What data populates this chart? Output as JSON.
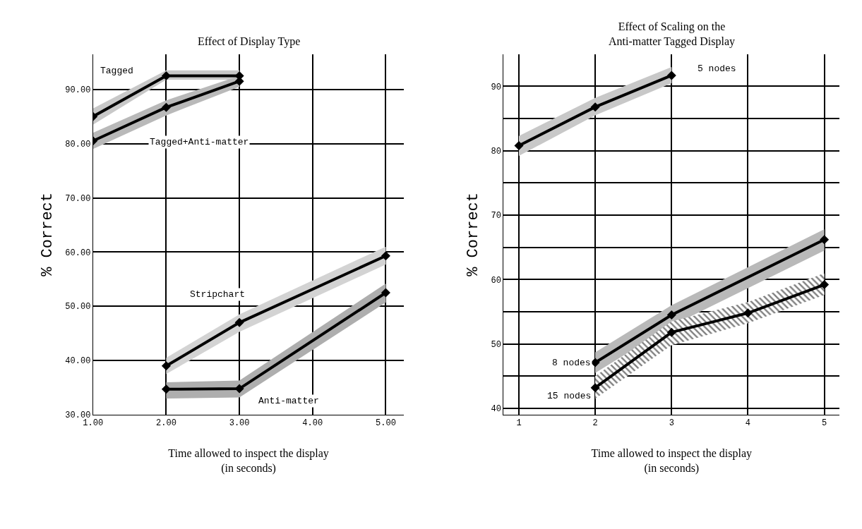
{
  "chart_data": [
    {
      "type": "line",
      "title": "Effect of Display Type",
      "xlabel": "Time allowed to inspect the display\n(in seconds)",
      "ylabel": "% Correct",
      "series": [
        {
          "name": "Tagged",
          "color": "#000000",
          "x": [
            1,
            2,
            3
          ],
          "values": [
            85,
            92.5,
            92.5
          ],
          "lower": [
            83.5,
            91.8,
            91.8
          ],
          "upper": [
            86.5,
            93.5,
            93.5
          ]
        },
        {
          "name": "Tagged+Anti-matter",
          "color": "#000000",
          "x": [
            1,
            2,
            3
          ],
          "values": [
            80.5,
            86.7,
            91.5
          ],
          "lower": [
            79,
            85.2,
            90.5
          ],
          "upper": [
            82,
            88,
            92.5
          ]
        },
        {
          "name": "Stripchart",
          "color": "#000000",
          "x": [
            2,
            3,
            5
          ],
          "values": [
            39,
            47,
            59.3
          ],
          "lower": [
            37.5,
            45.3,
            57.7
          ],
          "upper": [
            40.5,
            48.5,
            61
          ]
        },
        {
          "name": "Anti-matter",
          "color": "#000000",
          "x": [
            2,
            3,
            5
          ],
          "values": [
            34.7,
            34.8,
            52.5
          ],
          "lower": [
            33,
            33.2,
            50.7
          ],
          "upper": [
            36,
            36.3,
            54.2
          ]
        }
      ],
      "xlim": [
        1,
        5.25
      ],
      "ylim": [
        30,
        96.5
      ],
      "xticks": [
        {
          "value": 1,
          "label": "1.00"
        },
        {
          "value": 2,
          "label": "2.00"
        },
        {
          "value": 3,
          "label": "3.00"
        },
        {
          "value": 4,
          "label": "4.00"
        },
        {
          "value": 5,
          "label": "5.00"
        }
      ],
      "yticks": [
        {
          "value": 30,
          "label": "30.00"
        },
        {
          "value": 40,
          "label": "40.00"
        },
        {
          "value": 50,
          "label": "50.00"
        },
        {
          "value": 60,
          "label": "60.00"
        },
        {
          "value": 70,
          "label": "70.00"
        },
        {
          "value": 80,
          "label": "80.00"
        },
        {
          "value": 90,
          "label": "90.00"
        }
      ],
      "grid": true,
      "legend": false,
      "marker": "diamond",
      "line_style": "solid"
    },
    {
      "type": "line",
      "title": "Effect of Scaling on the\nAnti-matter Tagged Display",
      "xlabel": "Time allowed to inspect the display\n(in seconds)",
      "ylabel": "% Correct",
      "series": [
        {
          "name": "5 nodes",
          "color": "#000000",
          "x": [
            1,
            2,
            3
          ],
          "values": [
            80.8,
            86.8,
            91.7
          ],
          "lower": [
            79.2,
            85.5,
            90.5
          ],
          "upper": [
            82.3,
            88.2,
            93
          ]
        },
        {
          "name": "8 nodes",
          "color": "#000000",
          "x": [
            2,
            3,
            5
          ],
          "values": [
            47.1,
            54.5,
            66.2
          ],
          "lower": [
            45.5,
            52.8,
            64.5
          ],
          "upper": [
            48.7,
            56,
            67.8
          ]
        },
        {
          "name": "15 nodes",
          "color": "#000000",
          "x": [
            2,
            3,
            4,
            5
          ],
          "values": [
            43.2,
            51.8,
            54.8,
            59.2
          ],
          "lower": [
            41.5,
            49.8,
            53.2,
            57.6
          ],
          "upper": [
            45,
            53.5,
            56.5,
            61
          ]
        }
      ],
      "xlim": [
        0.8,
        5.2
      ],
      "ylim": [
        39,
        95
      ],
      "xticks": [
        1,
        2,
        3,
        4,
        5
      ],
      "yticks": [
        40,
        {
          "value": 45,
          "label": null
        },
        50,
        {
          "value": 55,
          "label": null
        },
        60,
        {
          "value": 65,
          "label": null
        },
        70,
        {
          "value": 75,
          "label": null
        },
        80,
        {
          "value": 85,
          "label": null
        },
        90
      ],
      "grid": true,
      "legend": false,
      "marker": "diamond",
      "line_style": "solid"
    }
  ]
}
